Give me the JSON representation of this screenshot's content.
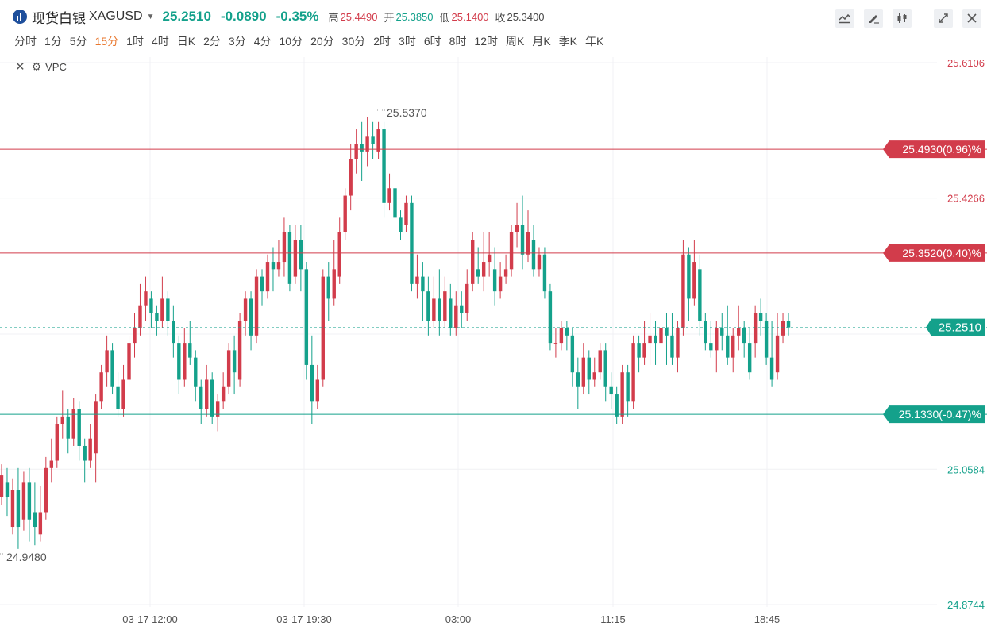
{
  "header": {
    "name": "现货白银",
    "symbol": "XAGUSD",
    "price": "25.2510",
    "change": "-0.0890",
    "change_pct": "-0.35%",
    "high_label": "高",
    "high": "25.4490",
    "open_label": "开",
    "open": "25.3850",
    "low_label": "低",
    "low": "25.1400",
    "close_label": "收",
    "close": "25.3400"
  },
  "toolbar_icons": [
    "line-chart-icon",
    "draw-icon",
    "candles-icon",
    "expand-icon",
    "close-icon"
  ],
  "periods": [
    "分时",
    "1分",
    "5分",
    "15分",
    "1时",
    "4时",
    "日K",
    "2分",
    "3分",
    "4分",
    "10分",
    "20分",
    "30分",
    "2时",
    "3时",
    "6时",
    "8时",
    "12时",
    "周K",
    "月K",
    "季K",
    "年K"
  ],
  "active_period": "15分",
  "indicator": {
    "label": "VPC"
  },
  "colors": {
    "up": "#d23c4b",
    "down": "#14a18b",
    "grid": "#f0f1f4"
  },
  "chart_data": {
    "type": "candlestick",
    "y_ticks": [
      "25.6106",
      "25.4266",
      "25.0584",
      "24.8744"
    ],
    "y_range": [
      24.8744,
      25.6106
    ],
    "x_ticks": [
      "03-17 12:00",
      "03-17 19:30",
      "03:00",
      "11:15",
      "18:45"
    ],
    "max_label": "25.5370",
    "min_label": "24.9480",
    "current_price": "25.2510",
    "price_lines": [
      {
        "label": "25.4930(0.96)%",
        "value": 25.493,
        "color": "#d23c4b"
      },
      {
        "label": "25.3520(0.40)%",
        "value": 25.352,
        "color": "#d23c4b"
      },
      {
        "label": "25.1330(-0.47)%",
        "value": 25.133,
        "color": "#14a18b"
      }
    ],
    "ohlc": [
      [
        25.02,
        25.05,
        25.01,
        25.065
      ],
      [
        25.04,
        25.02,
        24.995,
        25.06
      ],
      [
        24.98,
        25.03,
        24.97,
        25.045
      ],
      [
        25.03,
        24.98,
        24.95,
        25.06
      ],
      [
        24.99,
        25.04,
        24.975,
        25.055
      ],
      [
        25.04,
        24.99,
        24.96,
        25.06
      ],
      [
        25.0,
        24.98,
        24.955,
        25.04
      ],
      [
        24.97,
        25.0,
        24.96,
        25.035
      ],
      [
        25.0,
        25.06,
        24.99,
        25.075
      ],
      [
        25.06,
        25.07,
        25.04,
        25.1
      ],
      [
        25.07,
        25.12,
        25.06,
        25.13
      ],
      [
        25.12,
        25.13,
        25.1,
        25.165
      ],
      [
        25.13,
        25.1,
        25.08,
        25.14
      ],
      [
        25.1,
        25.14,
        25.09,
        25.155
      ],
      [
        25.14,
        25.09,
        25.07,
        25.15
      ],
      [
        25.09,
        25.07,
        25.04,
        25.1
      ],
      [
        25.07,
        25.1,
        25.06,
        25.12
      ],
      [
        25.08,
        25.15,
        25.04,
        25.16
      ],
      [
        25.15,
        25.19,
        25.14,
        25.2
      ],
      [
        25.19,
        25.22,
        25.17,
        25.24
      ],
      [
        25.22,
        25.17,
        25.16,
        25.23
      ],
      [
        25.17,
        25.14,
        25.13,
        25.19
      ],
      [
        25.14,
        25.18,
        25.13,
        25.2
      ],
      [
        25.18,
        25.23,
        25.17,
        25.24
      ],
      [
        25.23,
        25.25,
        25.21,
        25.27
      ],
      [
        25.25,
        25.28,
        25.24,
        25.31
      ],
      [
        25.28,
        25.3,
        25.26,
        25.32
      ],
      [
        25.29,
        25.27,
        25.25,
        25.3
      ],
      [
        25.27,
        25.26,
        25.24,
        25.28
      ],
      [
        25.26,
        25.29,
        25.25,
        25.32
      ],
      [
        25.29,
        25.26,
        25.24,
        25.3
      ],
      [
        25.26,
        25.23,
        25.21,
        25.28
      ],
      [
        25.23,
        25.18,
        25.16,
        25.24
      ],
      [
        25.18,
        25.23,
        25.17,
        25.25
      ],
      [
        25.23,
        25.21,
        25.2,
        25.26
      ],
      [
        25.21,
        25.17,
        25.15,
        25.22
      ],
      [
        25.17,
        25.14,
        25.12,
        25.18
      ],
      [
        25.14,
        25.18,
        25.13,
        25.2
      ],
      [
        25.18,
        25.13,
        25.12,
        25.19
      ],
      [
        25.13,
        25.15,
        25.11,
        25.16
      ],
      [
        25.15,
        25.17,
        25.14,
        25.19
      ],
      [
        25.17,
        25.22,
        25.16,
        25.23
      ],
      [
        25.22,
        25.19,
        25.16,
        25.24
      ],
      [
        25.18,
        25.26,
        25.17,
        25.27
      ],
      [
        25.26,
        25.29,
        25.24,
        25.3
      ],
      [
        25.29,
        25.24,
        25.22,
        25.3
      ],
      [
        25.24,
        25.32,
        25.23,
        25.33
      ],
      [
        25.32,
        25.3,
        25.28,
        25.33
      ],
      [
        25.3,
        25.34,
        25.29,
        25.35
      ],
      [
        25.34,
        25.33,
        25.3,
        25.36
      ],
      [
        25.33,
        25.34,
        25.32,
        25.37
      ],
      [
        25.34,
        25.38,
        25.32,
        25.4
      ],
      [
        25.38,
        25.31,
        25.3,
        25.39
      ],
      [
        25.32,
        25.37,
        25.31,
        25.39
      ],
      [
        25.37,
        25.33,
        25.3,
        25.39
      ],
      [
        25.33,
        25.2,
        25.18,
        25.34
      ],
      [
        25.2,
        25.15,
        25.12,
        25.24
      ],
      [
        25.15,
        25.18,
        25.14,
        25.2
      ],
      [
        25.18,
        25.32,
        25.17,
        25.33
      ],
      [
        25.32,
        25.29,
        25.26,
        25.34
      ],
      [
        25.29,
        25.33,
        25.28,
        25.37
      ],
      [
        25.32,
        25.38,
        25.31,
        25.4
      ],
      [
        25.38,
        25.43,
        25.37,
        25.44
      ],
      [
        25.43,
        25.48,
        25.41,
        25.5
      ],
      [
        25.48,
        25.5,
        25.46,
        25.52
      ],
      [
        25.5,
        25.49,
        25.45,
        25.53
      ],
      [
        25.49,
        25.51,
        25.47,
        25.537
      ],
      [
        25.51,
        25.5,
        25.48,
        25.53
      ],
      [
        25.49,
        25.52,
        25.48,
        25.53
      ],
      [
        25.52,
        25.42,
        25.4,
        25.53
      ],
      [
        25.42,
        25.44,
        25.41,
        25.46
      ],
      [
        25.44,
        25.4,
        25.38,
        25.45
      ],
      [
        25.4,
        25.38,
        25.37,
        25.41
      ],
      [
        25.39,
        25.42,
        25.38,
        25.43
      ],
      [
        25.42,
        25.31,
        25.3,
        25.43
      ],
      [
        25.31,
        25.32,
        25.29,
        25.35
      ],
      [
        25.32,
        25.3,
        25.26,
        25.34
      ],
      [
        25.3,
        25.26,
        25.24,
        25.32
      ],
      [
        25.26,
        25.29,
        25.25,
        25.32
      ],
      [
        25.29,
        25.26,
        25.24,
        25.33
      ],
      [
        25.26,
        25.3,
        25.25,
        25.32
      ],
      [
        25.29,
        25.25,
        25.24,
        25.31
      ],
      [
        25.25,
        25.28,
        25.24,
        25.3
      ],
      [
        25.28,
        25.27,
        25.25,
        25.3
      ],
      [
        25.27,
        25.31,
        25.26,
        25.33
      ],
      [
        25.31,
        25.37,
        25.3,
        25.38
      ],
      [
        25.33,
        25.32,
        25.31,
        25.36
      ],
      [
        25.32,
        25.34,
        25.3,
        25.38
      ],
      [
        25.34,
        25.35,
        25.32,
        25.38
      ],
      [
        25.33,
        25.3,
        25.28,
        25.36
      ],
      [
        25.3,
        25.32,
        25.29,
        25.34
      ],
      [
        25.32,
        25.33,
        25.31,
        25.35
      ],
      [
        25.33,
        25.38,
        25.32,
        25.39
      ],
      [
        25.38,
        25.39,
        25.36,
        25.42
      ],
      [
        25.39,
        25.35,
        25.33,
        25.43
      ],
      [
        25.35,
        25.38,
        25.34,
        25.41
      ],
      [
        25.37,
        25.33,
        25.32,
        25.39
      ],
      [
        25.33,
        25.35,
        25.32,
        25.36
      ],
      [
        25.35,
        25.3,
        25.29,
        25.36
      ],
      [
        25.3,
        25.23,
        25.22,
        25.31
      ],
      [
        25.23,
        25.23,
        25.21,
        25.25
      ],
      [
        25.23,
        25.25,
        25.22,
        25.26
      ],
      [
        25.25,
        25.24,
        25.22,
        25.26
      ],
      [
        25.24,
        25.19,
        25.17,
        25.25
      ],
      [
        25.19,
        25.17,
        25.14,
        25.21
      ],
      [
        25.17,
        25.21,
        25.16,
        25.23
      ],
      [
        25.21,
        25.18,
        25.16,
        25.22
      ],
      [
        25.18,
        25.19,
        25.17,
        25.21
      ],
      [
        25.19,
        25.22,
        25.18,
        25.23
      ],
      [
        25.22,
        25.17,
        25.15,
        25.23
      ],
      [
        25.17,
        25.16,
        25.14,
        25.19
      ],
      [
        25.16,
        25.13,
        25.12,
        25.17
      ],
      [
        25.13,
        25.19,
        25.12,
        25.2
      ],
      [
        25.19,
        25.15,
        25.13,
        25.2
      ],
      [
        25.15,
        25.23,
        25.14,
        25.24
      ],
      [
        25.23,
        25.21,
        25.19,
        25.24
      ],
      [
        25.21,
        25.23,
        25.2,
        25.26
      ],
      [
        25.23,
        25.24,
        25.2,
        25.27
      ],
      [
        25.24,
        25.23,
        25.2,
        25.26
      ],
      [
        25.23,
        25.25,
        25.22,
        25.28
      ],
      [
        25.25,
        25.24,
        25.2,
        25.27
      ],
      [
        25.24,
        25.21,
        25.2,
        25.27
      ],
      [
        25.21,
        25.25,
        25.19,
        25.26
      ],
      [
        25.25,
        25.35,
        25.24,
        25.37
      ],
      [
        25.35,
        25.29,
        25.26,
        25.36
      ],
      [
        25.29,
        25.34,
        25.28,
        25.37
      ],
      [
        25.33,
        25.26,
        25.24,
        25.35
      ],
      [
        25.26,
        25.23,
        25.22,
        25.27
      ],
      [
        25.23,
        25.22,
        25.21,
        25.26
      ],
      [
        25.22,
        25.25,
        25.19,
        25.26
      ],
      [
        25.25,
        25.24,
        25.22,
        25.27
      ],
      [
        25.24,
        25.21,
        25.2,
        25.28
      ],
      [
        25.21,
        25.24,
        25.19,
        25.25
      ],
      [
        25.24,
        25.25,
        25.22,
        25.28
      ],
      [
        25.25,
        25.23,
        25.21,
        25.26
      ],
      [
        25.23,
        25.19,
        25.18,
        25.25
      ],
      [
        25.23,
        25.27,
        25.21,
        25.28
      ],
      [
        25.27,
        25.26,
        25.24,
        25.29
      ],
      [
        25.26,
        25.21,
        25.2,
        25.27
      ],
      [
        25.21,
        25.18,
        25.17,
        25.26
      ],
      [
        25.19,
        25.24,
        25.18,
        25.27
      ],
      [
        25.24,
        25.26,
        25.23,
        25.27
      ],
      [
        25.26,
        25.251,
        25.24,
        25.27
      ]
    ]
  }
}
